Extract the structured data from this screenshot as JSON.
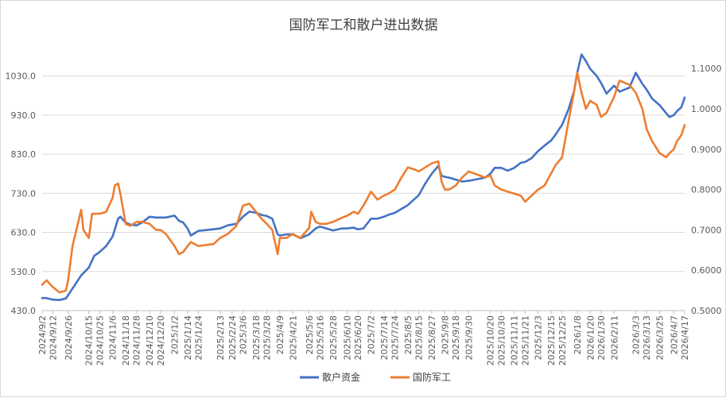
{
  "chart_data": {
    "type": "line",
    "title": "国防军工和散户进出数据",
    "grid": true,
    "legend_position": "bottom",
    "y_left": {
      "ylim": [
        430.0,
        1080.0
      ],
      "ticks": [
        "430.0",
        "530.0",
        "630.0",
        "730.0",
        "830.0",
        "930.0",
        "1030.0"
      ],
      "tick_values": [
        430,
        530,
        630,
        730,
        830,
        930,
        1030
      ]
    },
    "y_right": {
      "ylim": [
        0.5,
        1.13
      ],
      "ticks": [
        "0.5000",
        "0.6000",
        "0.7000",
        "0.8000",
        "0.9000",
        "1.0000",
        "1.1000"
      ],
      "tick_values": [
        0.5,
        0.6,
        0.7,
        0.8,
        0.9,
        1.0,
        1.1
      ]
    },
    "x_start": "2024-09-02",
    "x_end": "2026-04-17",
    "x_tick_labels": [
      {
        "label": "2024/9/2",
        "date": "2024-09-02"
      },
      {
        "label": "2024/9/12",
        "date": "2024-09-12"
      },
      {
        "label": "2024/9/26",
        "date": "2024-09-26"
      },
      {
        "label": "2024/10/15",
        "date": "2024-10-15"
      },
      {
        "label": "2024/10/25",
        "date": "2024-10-25"
      },
      {
        "label": "2024/11/6",
        "date": "2024-11-06"
      },
      {
        "label": "2024/11/18",
        "date": "2024-11-18"
      },
      {
        "label": "2024/11/28",
        "date": "2024-11-28"
      },
      {
        "label": "2024/12/10",
        "date": "2024-12-10"
      },
      {
        "label": "2024/12/20",
        "date": "2024-12-20"
      },
      {
        "label": "2025/1/2",
        "date": "2025-01-02"
      },
      {
        "label": "2025/1/14",
        "date": "2025-01-14"
      },
      {
        "label": "2025/1/24",
        "date": "2025-01-24"
      },
      {
        "label": "2025/2/13",
        "date": "2025-02-13"
      },
      {
        "label": "2025/2/24",
        "date": "2025-02-24"
      },
      {
        "label": "2025/3/6",
        "date": "2025-03-06"
      },
      {
        "label": "2025/3/18",
        "date": "2025-03-18"
      },
      {
        "label": "2025/3/28",
        "date": "2025-03-28"
      },
      {
        "label": "2025/4/9",
        "date": "2025-04-09"
      },
      {
        "label": "2025/4/21",
        "date": "2025-04-21"
      },
      {
        "label": "2025/5/6",
        "date": "2025-05-06"
      },
      {
        "label": "2025/5/16",
        "date": "2025-05-16"
      },
      {
        "label": "2025/5/28",
        "date": "2025-05-28"
      },
      {
        "label": "2025/6/10",
        "date": "2025-06-10"
      },
      {
        "label": "2025/6/20",
        "date": "2025-06-20"
      },
      {
        "label": "2025/7/2",
        "date": "2025-07-02"
      },
      {
        "label": "2025/7/14",
        "date": "2025-07-14"
      },
      {
        "label": "2025/7/24",
        "date": "2025-07-24"
      },
      {
        "label": "2025/8/5",
        "date": "2025-08-05"
      },
      {
        "label": "2025/8/15",
        "date": "2025-08-15"
      },
      {
        "label": "2025/8/27",
        "date": "2025-08-27"
      },
      {
        "label": "2025/9/8",
        "date": "2025-09-08"
      },
      {
        "label": "2025/9/18",
        "date": "2025-09-18"
      },
      {
        "label": "2025/9/30",
        "date": "2025-09-30"
      },
      {
        "label": "2025/10/20",
        "date": "2025-10-20"
      },
      {
        "label": "2025/10/30",
        "date": "2025-10-30"
      },
      {
        "label": "2025/11/11",
        "date": "2025-11-11"
      },
      {
        "label": "2025/11/21",
        "date": "2025-11-21"
      },
      {
        "label": "2025/12/3",
        "date": "2025-12-03"
      },
      {
        "label": "2025/12/15",
        "date": "2025-12-15"
      },
      {
        "label": "2025/12/25",
        "date": "2025-12-25"
      },
      {
        "label": "2026/1/8",
        "date": "2026-01-08"
      },
      {
        "label": "2026/1/20",
        "date": "2026-01-20"
      },
      {
        "label": "2026/1/30",
        "date": "2026-01-30"
      },
      {
        "label": "2026/2/11",
        "date": "2026-02-11"
      },
      {
        "label": "2026/3/3",
        "date": "2026-03-03"
      },
      {
        "label": "2026/3/13",
        "date": "2026-03-13"
      },
      {
        "label": "2026/3/25",
        "date": "2026-03-25"
      },
      {
        "label": "2026/4/7",
        "date": "2026-04-07"
      },
      {
        "label": "2026/4/17",
        "date": "2026-04-17"
      }
    ],
    "series": [
      {
        "name": "散户资金",
        "axis": "left",
        "color": "#4472C4",
        "points": [
          [
            "2024-09-02",
            462
          ],
          [
            "2024-09-06",
            462
          ],
          [
            "2024-09-12",
            458
          ],
          [
            "2024-09-18",
            457
          ],
          [
            "2024-09-24",
            461
          ],
          [
            "2024-09-26",
            470
          ],
          [
            "2024-10-08",
            520
          ],
          [
            "2024-10-15",
            540
          ],
          [
            "2024-10-20",
            570
          ],
          [
            "2024-10-25",
            580
          ],
          [
            "2024-10-31",
            595
          ],
          [
            "2024-11-06",
            620
          ],
          [
            "2024-11-11",
            665
          ],
          [
            "2024-11-13",
            670
          ],
          [
            "2024-11-18",
            655
          ],
          [
            "2024-11-22",
            650
          ],
          [
            "2024-11-28",
            648
          ],
          [
            "2024-12-03",
            655
          ],
          [
            "2024-12-10",
            670
          ],
          [
            "2024-12-16",
            668
          ],
          [
            "2024-12-20",
            668
          ],
          [
            "2024-12-25",
            668
          ],
          [
            "2025-01-02",
            673
          ],
          [
            "2025-01-06",
            660
          ],
          [
            "2025-01-10",
            655
          ],
          [
            "2025-01-14",
            640
          ],
          [
            "2025-01-17",
            622
          ],
          [
            "2025-01-24",
            634
          ],
          [
            "2025-02-07",
            638
          ],
          [
            "2025-02-13",
            640
          ],
          [
            "2025-02-20",
            648
          ],
          [
            "2025-02-24",
            650
          ],
          [
            "2025-02-28",
            652
          ],
          [
            "2025-03-06",
            670
          ],
          [
            "2025-03-12",
            683
          ],
          [
            "2025-03-18",
            680
          ],
          [
            "2025-03-24",
            674
          ],
          [
            "2025-03-28",
            672
          ],
          [
            "2025-04-02",
            665
          ],
          [
            "2025-04-07",
            625
          ],
          [
            "2025-04-09",
            622
          ],
          [
            "2025-04-15",
            625
          ],
          [
            "2025-04-21",
            625
          ],
          [
            "2025-04-28",
            615
          ],
          [
            "2025-05-06",
            625
          ],
          [
            "2025-05-12",
            640
          ],
          [
            "2025-05-16",
            645
          ],
          [
            "2025-05-22",
            640
          ],
          [
            "2025-05-28",
            635
          ],
          [
            "2025-06-05",
            640
          ],
          [
            "2025-06-10",
            640
          ],
          [
            "2025-06-16",
            642
          ],
          [
            "2025-06-20",
            638
          ],
          [
            "2025-06-25",
            640
          ],
          [
            "2025-07-02",
            665
          ],
          [
            "2025-07-08",
            665
          ],
          [
            "2025-07-14",
            670
          ],
          [
            "2025-07-18",
            675
          ],
          [
            "2025-07-24",
            680
          ],
          [
            "2025-07-30",
            690
          ],
          [
            "2025-08-05",
            700
          ],
          [
            "2025-08-11",
            715
          ],
          [
            "2025-08-15",
            725
          ],
          [
            "2025-08-21",
            755
          ],
          [
            "2025-08-27",
            780
          ],
          [
            "2025-09-02",
            800
          ],
          [
            "2025-09-05",
            775
          ],
          [
            "2025-09-08",
            772
          ],
          [
            "2025-09-12",
            770
          ],
          [
            "2025-09-18",
            765
          ],
          [
            "2025-09-24",
            760
          ],
          [
            "2025-09-30",
            762
          ],
          [
            "2025-10-15",
            770
          ],
          [
            "2025-10-20",
            780
          ],
          [
            "2025-10-24",
            795
          ],
          [
            "2025-10-30",
            795
          ],
          [
            "2025-11-05",
            788
          ],
          [
            "2025-11-11",
            795
          ],
          [
            "2025-11-17",
            808
          ],
          [
            "2025-11-21",
            810
          ],
          [
            "2025-11-27",
            820
          ],
          [
            "2025-12-03",
            838
          ],
          [
            "2025-12-09",
            852
          ],
          [
            "2025-12-15",
            865
          ],
          [
            "2025-12-19",
            880
          ],
          [
            "2025-12-25",
            905
          ],
          [
            "2025-12-31",
            945
          ],
          [
            "2026-01-05",
            990
          ],
          [
            "2026-01-08",
            1038
          ],
          [
            "2026-01-12",
            1085
          ],
          [
            "2026-01-16",
            1068
          ],
          [
            "2026-01-20",
            1048
          ],
          [
            "2026-01-26",
            1030
          ],
          [
            "2026-01-30",
            1012
          ],
          [
            "2026-02-04",
            985
          ],
          [
            "2026-02-11",
            1005
          ],
          [
            "2026-02-16",
            990
          ],
          [
            "2026-02-25",
            1000
          ],
          [
            "2026-03-03",
            1038
          ],
          [
            "2026-03-09",
            1010
          ],
          [
            "2026-03-13",
            995
          ],
          [
            "2026-03-18",
            972
          ],
          [
            "2026-03-25",
            955
          ],
          [
            "2026-03-31",
            935
          ],
          [
            "2026-04-03",
            925
          ],
          [
            "2026-04-07",
            930
          ],
          [
            "2026-04-10",
            940
          ],
          [
            "2026-04-14",
            950
          ],
          [
            "2026-04-17",
            975
          ]
        ]
      },
      {
        "name": "国防军工",
        "axis": "right",
        "color": "#ED7D31",
        "points": [
          [
            "2024-09-02",
            0.564
          ],
          [
            "2024-09-06",
            0.575
          ],
          [
            "2024-09-12",
            0.558
          ],
          [
            "2024-09-18",
            0.545
          ],
          [
            "2024-09-24",
            0.55
          ],
          [
            "2024-09-26",
            0.577
          ],
          [
            "2024-09-30",
            0.66
          ],
          [
            "2024-10-08",
            0.75
          ],
          [
            "2024-10-10",
            0.7
          ],
          [
            "2024-10-15",
            0.68
          ],
          [
            "2024-10-18",
            0.74
          ],
          [
            "2024-10-25",
            0.74
          ],
          [
            "2024-10-31",
            0.745
          ],
          [
            "2024-11-06",
            0.78
          ],
          [
            "2024-11-08",
            0.81
          ],
          [
            "2024-11-11",
            0.815
          ],
          [
            "2024-11-13",
            0.79
          ],
          [
            "2024-11-18",
            0.715
          ],
          [
            "2024-11-22",
            0.71
          ],
          [
            "2024-11-28",
            0.72
          ],
          [
            "2024-12-03",
            0.72
          ],
          [
            "2024-12-10",
            0.715
          ],
          [
            "2024-12-16",
            0.7
          ],
          [
            "2024-12-20",
            0.7
          ],
          [
            "2024-12-25",
            0.69
          ],
          [
            "2025-01-02",
            0.66
          ],
          [
            "2025-01-06",
            0.64
          ],
          [
            "2025-01-10",
            0.645
          ],
          [
            "2025-01-14",
            0.66
          ],
          [
            "2025-01-17",
            0.67
          ],
          [
            "2025-01-24",
            0.66
          ],
          [
            "2025-02-07",
            0.665
          ],
          [
            "2025-02-13",
            0.68
          ],
          [
            "2025-02-20",
            0.69
          ],
          [
            "2025-02-24",
            0.7
          ],
          [
            "2025-02-28",
            0.71
          ],
          [
            "2025-03-06",
            0.76
          ],
          [
            "2025-03-12",
            0.765
          ],
          [
            "2025-03-18",
            0.745
          ],
          [
            "2025-03-24",
            0.725
          ],
          [
            "2025-03-28",
            0.715
          ],
          [
            "2025-04-02",
            0.7
          ],
          [
            "2025-04-07",
            0.64
          ],
          [
            "2025-04-09",
            0.68
          ],
          [
            "2025-04-15",
            0.68
          ],
          [
            "2025-04-21",
            0.69
          ],
          [
            "2025-04-28",
            0.68
          ],
          [
            "2025-05-06",
            0.705
          ],
          [
            "2025-05-08",
            0.745
          ],
          [
            "2025-05-12",
            0.72
          ],
          [
            "2025-05-16",
            0.715
          ],
          [
            "2025-05-22",
            0.715
          ],
          [
            "2025-05-28",
            0.72
          ],
          [
            "2025-06-05",
            0.73
          ],
          [
            "2025-06-10",
            0.735
          ],
          [
            "2025-06-16",
            0.745
          ],
          [
            "2025-06-20",
            0.74
          ],
          [
            "2025-06-25",
            0.76
          ],
          [
            "2025-07-02",
            0.795
          ],
          [
            "2025-07-08",
            0.775
          ],
          [
            "2025-07-14",
            0.785
          ],
          [
            "2025-07-18",
            0.79
          ],
          [
            "2025-07-24",
            0.8
          ],
          [
            "2025-07-30",
            0.83
          ],
          [
            "2025-08-05",
            0.855
          ],
          [
            "2025-08-11",
            0.85
          ],
          [
            "2025-08-15",
            0.845
          ],
          [
            "2025-08-21",
            0.855
          ],
          [
            "2025-08-27",
            0.865
          ],
          [
            "2025-09-02",
            0.87
          ],
          [
            "2025-09-05",
            0.82
          ],
          [
            "2025-09-08",
            0.8
          ],
          [
            "2025-09-12",
            0.8
          ],
          [
            "2025-09-18",
            0.81
          ],
          [
            "2025-09-24",
            0.83
          ],
          [
            "2025-09-30",
            0.845
          ],
          [
            "2025-10-15",
            0.83
          ],
          [
            "2025-10-20",
            0.835
          ],
          [
            "2025-10-24",
            0.81
          ],
          [
            "2025-10-30",
            0.8
          ],
          [
            "2025-11-05",
            0.795
          ],
          [
            "2025-11-11",
            0.79
          ],
          [
            "2025-11-17",
            0.785
          ],
          [
            "2025-11-21",
            0.77
          ],
          [
            "2025-11-27",
            0.785
          ],
          [
            "2025-12-03",
            0.8
          ],
          [
            "2025-12-09",
            0.81
          ],
          [
            "2025-12-15",
            0.84
          ],
          [
            "2025-12-19",
            0.86
          ],
          [
            "2025-12-25",
            0.88
          ],
          [
            "2025-12-31",
            0.97
          ],
          [
            "2026-01-05",
            1.04
          ],
          [
            "2026-01-08",
            1.09
          ],
          [
            "2026-01-12",
            1.04
          ],
          [
            "2026-01-16",
            1.0
          ],
          [
            "2026-01-20",
            1.02
          ],
          [
            "2026-01-26",
            1.01
          ],
          [
            "2026-01-30",
            0.98
          ],
          [
            "2026-02-04",
            0.99
          ],
          [
            "2026-02-11",
            1.03
          ],
          [
            "2026-02-16",
            1.07
          ],
          [
            "2026-02-25",
            1.06
          ],
          [
            "2026-03-03",
            1.04
          ],
          [
            "2026-03-09",
            1.0
          ],
          [
            "2026-03-13",
            0.95
          ],
          [
            "2026-03-18",
            0.92
          ],
          [
            "2026-03-25",
            0.89
          ],
          [
            "2026-03-31",
            0.88
          ],
          [
            "2026-04-03",
            0.89
          ],
          [
            "2026-04-07",
            0.9
          ],
          [
            "2026-04-10",
            0.92
          ],
          [
            "2026-04-14",
            0.935
          ],
          [
            "2026-04-17",
            0.96
          ]
        ]
      }
    ]
  }
}
